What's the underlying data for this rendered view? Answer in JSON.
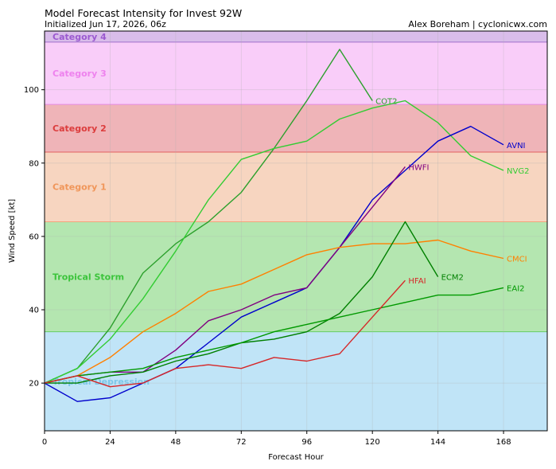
{
  "header": {
    "title": "Model Forecast Intensity for Invest 92W",
    "subtitle": "Initialized Jun 17, 2026, 06z",
    "credit": "Alex Boreham | cyclonicwx.com"
  },
  "chart_data": {
    "type": "line",
    "title": "Model Forecast Intensity for Invest 92W",
    "xlabel": "Forecast Hour",
    "ylabel": "Wind Speed [kt]",
    "xlim": [
      0,
      184
    ],
    "ylim": [
      7,
      116
    ],
    "xticks": [
      0,
      24,
      48,
      72,
      96,
      120,
      144,
      168
    ],
    "yticks": [
      20,
      40,
      60,
      80,
      100
    ],
    "grid": true,
    "bands": [
      {
        "label": "Tropical Depression",
        "min": 7,
        "max": 34,
        "fill": "#c0e4f7",
        "text": "#7ec8e8"
      },
      {
        "label": "Tropical Storm",
        "min": 34,
        "max": 64,
        "fill": "#b4e6b0",
        "text": "#3cc43c",
        "edge": "#66cc66"
      },
      {
        "label": "Category 1",
        "min": 64,
        "max": 83,
        "fill": "#f7d5c0",
        "text": "#f0965a",
        "edge": "#f4a47c"
      },
      {
        "label": "Category 2",
        "min": 83,
        "max": 96,
        "fill": "#efb4b8",
        "text": "#dc3c3c",
        "edge": "#e06060"
      },
      {
        "label": "Category 3",
        "min": 96,
        "max": 113,
        "fill": "#f9cdf9",
        "text": "#ee82ee",
        "edge": "#e58ae5"
      },
      {
        "label": "Category 4",
        "min": 113,
        "max": 116,
        "fill": "#d9bdea",
        "text": "#9b59d0",
        "edge": "#a070cc"
      }
    ],
    "series": [
      {
        "name": "COT2",
        "color": "#2ca02c",
        "x": [
          0,
          12,
          24,
          36,
          48,
          60,
          72,
          84,
          96,
          108,
          120
        ],
        "y": [
          20,
          24,
          35,
          50,
          58,
          64,
          72,
          84,
          97,
          111,
          97
        ]
      },
      {
        "name": "NVG2",
        "color": "#33cc33",
        "x": [
          0,
          12,
          24,
          36,
          48,
          60,
          72,
          84,
          96,
          108,
          120,
          132,
          144,
          156,
          168
        ],
        "y": [
          20,
          24,
          32,
          43,
          56,
          70,
          81,
          84,
          86,
          92,
          95,
          97,
          91,
          82,
          78
        ]
      },
      {
        "name": "AVNI",
        "color": "#0000cc",
        "x": [
          0,
          12,
          24,
          36,
          48,
          60,
          72,
          84,
          96,
          108,
          120,
          132,
          144,
          156,
          168
        ],
        "y": [
          20,
          15,
          16,
          20,
          24,
          31,
          38,
          42,
          46,
          57,
          70,
          78,
          86,
          90,
          85
        ]
      },
      {
        "name": "HWFI",
        "color": "#800080",
        "x": [
          0,
          12,
          24,
          36,
          48,
          60,
          72,
          84,
          96,
          108,
          120,
          132
        ],
        "y": [
          20,
          22,
          23,
          23,
          29,
          37,
          40,
          44,
          46,
          57,
          68,
          79
        ]
      },
      {
        "name": "CMCI",
        "color": "#ff8000",
        "x": [
          0,
          12,
          24,
          36,
          48,
          60,
          72,
          84,
          96,
          108,
          120,
          132,
          144,
          156,
          168
        ],
        "y": [
          20,
          22,
          27,
          34,
          39,
          45,
          47,
          51,
          55,
          57,
          58,
          58,
          59,
          56,
          54
        ]
      },
      {
        "name": "ECM2",
        "color": "#008000",
        "x": [
          0,
          12,
          24,
          36,
          48,
          60,
          72,
          84,
          96,
          108,
          120,
          132,
          144
        ],
        "y": [
          20,
          20,
          22,
          23,
          26,
          28,
          31,
          32,
          34,
          39,
          49,
          64,
          49
        ]
      },
      {
        "name": "EAI2",
        "color": "#009900",
        "x": [
          0,
          12,
          24,
          36,
          48,
          60,
          72,
          84,
          96,
          108,
          120,
          132,
          144,
          156,
          168
        ],
        "y": [
          20,
          22,
          23,
          24,
          27,
          29,
          31,
          34,
          36,
          38,
          40,
          42,
          44,
          44,
          46
        ]
      },
      {
        "name": "HFAI",
        "color": "#d62728",
        "x": [
          0,
          12,
          24,
          36,
          48,
          60,
          72,
          84,
          96,
          108,
          120,
          132
        ],
        "y": [
          20,
          22,
          19,
          20,
          24,
          25,
          24,
          27,
          26,
          28,
          38,
          48
        ]
      }
    ]
  }
}
